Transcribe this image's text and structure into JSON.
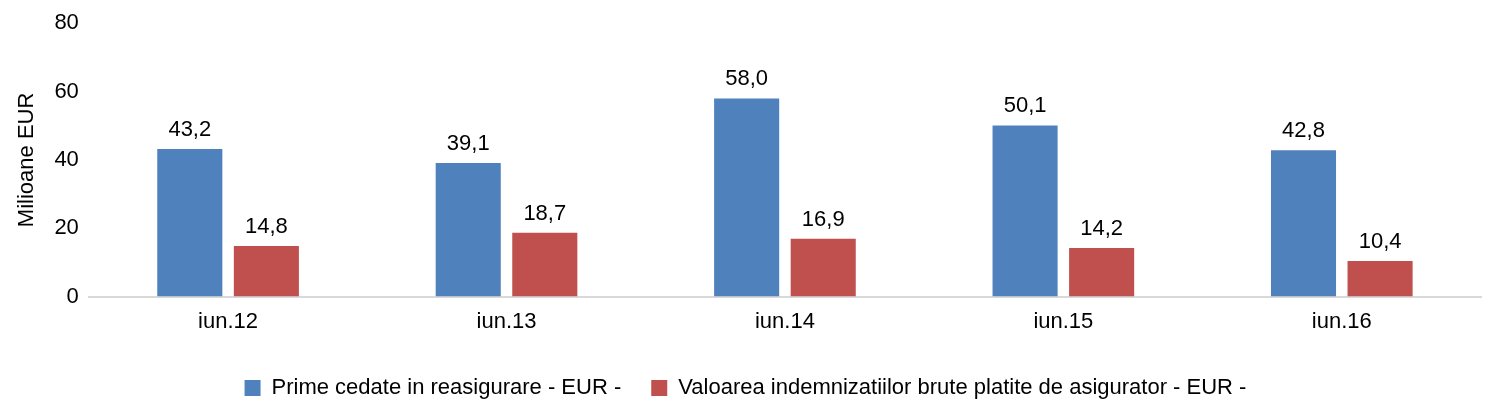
{
  "chart_data": {
    "type": "bar",
    "ylabel": "Milioane EUR",
    "categories": [
      "iun.12",
      "iun.13",
      "iun.14",
      "iun.15",
      "iun.16"
    ],
    "series": [
      {
        "name": "Prime cedate in reasigurare - EUR -",
        "color": "#4f81bd",
        "values": [
          43.2,
          39.1,
          58.0,
          50.1,
          42.8
        ],
        "value_labels": [
          "43,2",
          "39,1",
          "58,0",
          "50,1",
          "42,8"
        ]
      },
      {
        "name": "Valoarea indemnizatiilor brute platite de asigurator - EUR -",
        "color": "#c0504d",
        "values": [
          14.8,
          18.7,
          16.9,
          14.2,
          10.4
        ],
        "value_labels": [
          "14,8",
          "18,7",
          "16,9",
          "14,2",
          "10,4"
        ]
      }
    ],
    "ylim": [
      0,
      80
    ],
    "yticks": [
      0,
      20,
      40,
      60,
      80
    ],
    "grid": false,
    "legend": "bottom"
  }
}
